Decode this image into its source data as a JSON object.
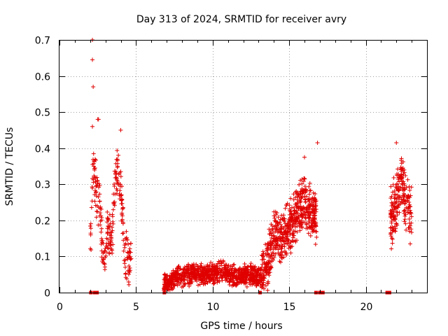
{
  "chart_data": {
    "type": "scatter",
    "title": "Day 313 of 2024, SRMTID for receiver avry",
    "xlabel": "GPS time / hours",
    "ylabel": "SRMTID / TECUs",
    "xlim": [
      0,
      24
    ],
    "ylim": [
      0,
      0.7
    ],
    "xticks": [
      0,
      5,
      10,
      15,
      20
    ],
    "xtick_labels": [
      "0",
      "5",
      "10",
      "15",
      "20"
    ],
    "yticks": [
      0,
      0.1,
      0.2,
      0.3,
      0.4,
      0.5,
      0.6,
      0.7
    ],
    "ytick_labels": [
      "0",
      "0.1",
      "0.2",
      "0.3",
      "0.4",
      "0.5",
      "0.6",
      "0.7"
    ],
    "grid": true,
    "marker": "+",
    "color": "#e00000",
    "series": [
      {
        "name": "SRMTID",
        "segments": [
          {
            "x_start": 2.0,
            "x_end": 4.7,
            "profile": [
              [
                2.0,
                0.12
              ],
              [
                2.2,
                0.35
              ],
              [
                2.4,
                0.28
              ],
              [
                2.6,
                0.24
              ],
              [
                2.8,
                0.12
              ],
              [
                3.0,
                0.1
              ],
              [
                3.2,
                0.2
              ],
              [
                3.4,
                0.12
              ],
              [
                3.6,
                0.3
              ],
              [
                3.8,
                0.35
              ],
              [
                4.0,
                0.3
              ],
              [
                4.2,
                0.14
              ],
              [
                4.4,
                0.1
              ],
              [
                4.7,
                0.08
              ]
            ],
            "spread": 0.06,
            "count": 260
          },
          {
            "x_start": 6.8,
            "x_end": 13.2,
            "profile": [
              [
                6.8,
                0.02
              ],
              [
                7.5,
                0.045
              ],
              [
                9.0,
                0.05
              ],
              [
                10.0,
                0.05
              ],
              [
                10.5,
                0.06
              ],
              [
                11.5,
                0.045
              ],
              [
                12.5,
                0.05
              ],
              [
                13.2,
                0.04
              ]
            ],
            "spread": 0.025,
            "count": 900
          },
          {
            "x_start": 13.2,
            "x_end": 16.8,
            "profile": [
              [
                13.2,
                0.04
              ],
              [
                13.6,
                0.08
              ],
              [
                14.0,
                0.15
              ],
              [
                14.5,
                0.15
              ],
              [
                15.0,
                0.18
              ],
              [
                15.5,
                0.22
              ],
              [
                16.0,
                0.25
              ],
              [
                16.5,
                0.22
              ],
              [
                16.8,
                0.2
              ]
            ],
            "spread": 0.06,
            "count": 620
          },
          {
            "x_start": 21.6,
            "x_end": 23.0,
            "profile": [
              [
                21.6,
                0.2
              ],
              [
                22.0,
                0.25
              ],
              [
                22.3,
                0.3
              ],
              [
                22.6,
                0.25
              ],
              [
                23.0,
                0.22
              ]
            ],
            "spread": 0.07,
            "count": 220
          }
        ],
        "outliers": [
          {
            "x": 2.15,
            "y": 0.7
          },
          {
            "x": 2.15,
            "y": 0.645
          },
          {
            "x": 2.2,
            "y": 0.57
          },
          {
            "x": 2.15,
            "y": 0.46
          },
          {
            "x": 2.5,
            "y": 0.48
          },
          {
            "x": 2.55,
            "y": 0.48
          },
          {
            "x": 4.0,
            "y": 0.45
          },
          {
            "x": 16.85,
            "y": 0.415
          },
          {
            "x": 22.0,
            "y": 0.415
          },
          {
            "x": 16.0,
            "y": 0.375
          }
        ],
        "zero_markers": [
          2.05,
          2.3,
          2.45,
          6.85,
          13.1,
          16.75,
          17.0,
          17.2,
          21.4,
          21.55
        ]
      }
    ]
  }
}
